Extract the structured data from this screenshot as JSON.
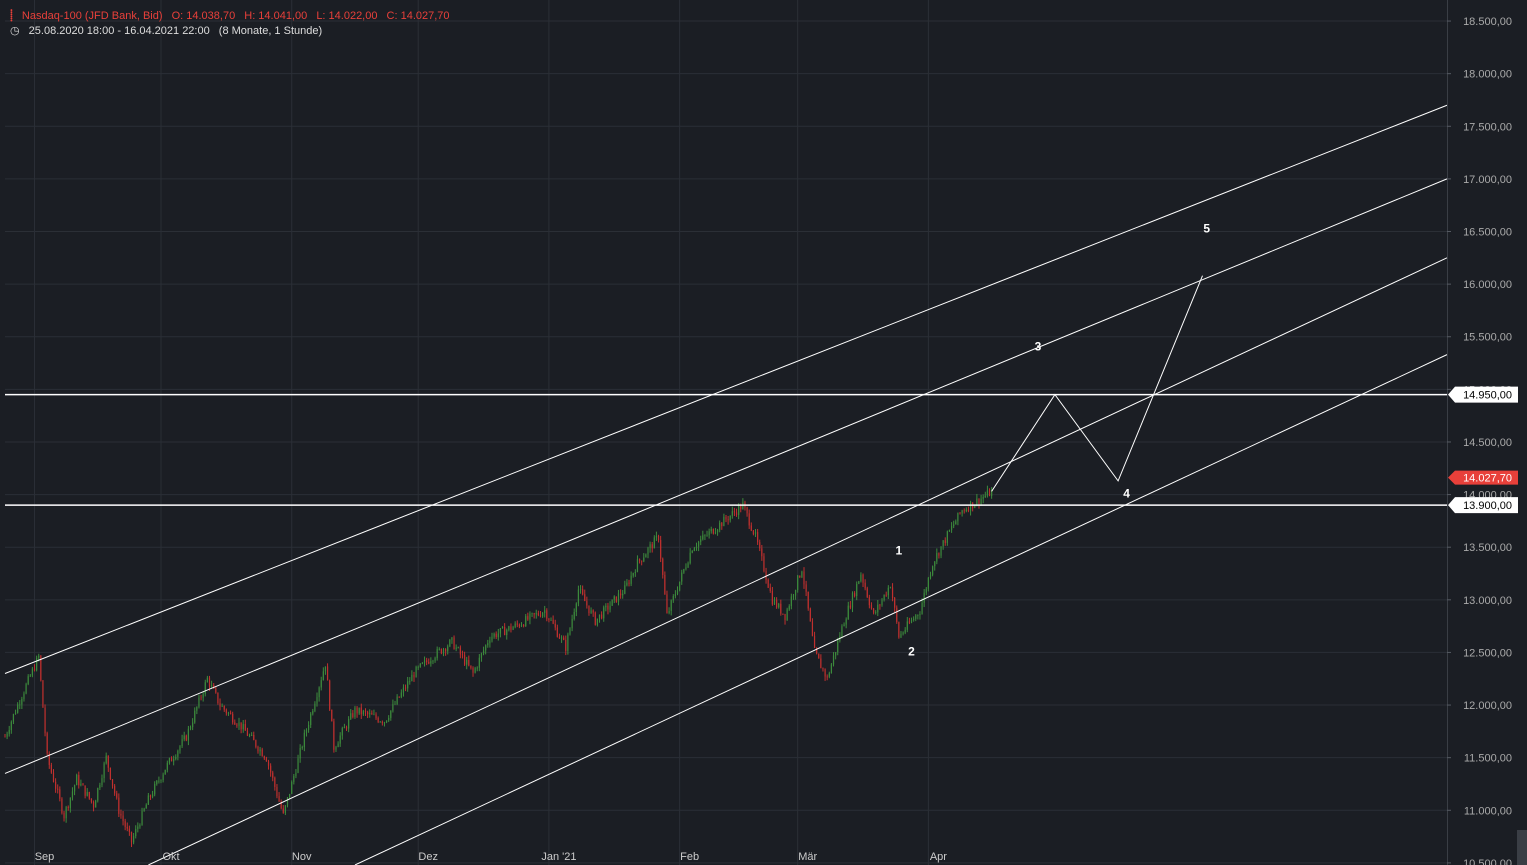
{
  "chart_data": {
    "type": "candlestick",
    "symbol": "Nasdaq-100 (JFD Bank, Bid)",
    "ohlc": {
      "open": "O: 14.038,70",
      "high": "H: 14.041,00",
      "low": "L: 14.022,00",
      "close": "C: 14.027,70"
    },
    "range_text": "25.08.2020 18:00 - 16.04.2021 22:00",
    "period_text": "(8 Monate, 1 Stunde)",
    "x_labels": [
      {
        "label": "Sep",
        "date": "2020-09-01"
      },
      {
        "label": "Okt",
        "date": "2020-10-01"
      },
      {
        "label": "Nov",
        "date": "2020-11-01"
      },
      {
        "label": "Dez",
        "date": "2020-12-01"
      },
      {
        "label": "Jan '21",
        "date": "2021-01-01"
      },
      {
        "label": "Feb",
        "date": "2021-02-01"
      },
      {
        "label": "Mär",
        "date": "2021-03-01"
      },
      {
        "label": "Apr",
        "date": "2021-04-01"
      }
    ],
    "y_ticks": [
      {
        "value": 10500,
        "label": "10.500,00"
      },
      {
        "value": 11000,
        "label": "11.000,00"
      },
      {
        "value": 11500,
        "label": "11.500,00"
      },
      {
        "value": 12000,
        "label": "12.000,00"
      },
      {
        "value": 12500,
        "label": "12.500,00"
      },
      {
        "value": 13000,
        "label": "13.000,00"
      },
      {
        "value": 13500,
        "label": "13.500,00"
      },
      {
        "value": 14000,
        "label": "14.000,00"
      },
      {
        "value": 14500,
        "label": "14.500,00"
      },
      {
        "value": 15000,
        "label": "15.000,00"
      },
      {
        "value": 15500,
        "label": "15.500,00"
      },
      {
        "value": 16000,
        "label": "16.000,00"
      },
      {
        "value": 16500,
        "label": "16.500,00"
      },
      {
        "value": 17000,
        "label": "17.000,00"
      },
      {
        "value": 17500,
        "label": "17.500,00"
      },
      {
        "value": 18000,
        "label": "18.000,00"
      },
      {
        "value": 18500,
        "label": "18.500,00"
      }
    ],
    "ylim": [
      10480,
      18700
    ],
    "xlim": [
      "2020-08-25",
      "2021-08-02"
    ],
    "price_path": [
      [
        "2020-08-25",
        11700
      ],
      [
        "2020-08-28",
        12000
      ],
      [
        "2020-09-02",
        12460
      ],
      [
        "2020-09-04",
        11500
      ],
      [
        "2020-09-08",
        10950
      ],
      [
        "2020-09-11",
        11300
      ],
      [
        "2020-09-15",
        11050
      ],
      [
        "2020-09-18",
        11500
      ],
      [
        "2020-09-21",
        11000
      ],
      [
        "2020-09-24",
        10700
      ],
      [
        "2020-09-28",
        11100
      ],
      [
        "2020-10-02",
        11400
      ],
      [
        "2020-10-07",
        11700
      ],
      [
        "2020-10-12",
        12250
      ],
      [
        "2020-10-15",
        12000
      ],
      [
        "2020-10-20",
        11800
      ],
      [
        "2020-10-26",
        11500
      ],
      [
        "2020-10-30",
        10950
      ],
      [
        "2020-11-04",
        11700
      ],
      [
        "2020-11-09",
        12400
      ],
      [
        "2020-11-11",
        11600
      ],
      [
        "2020-11-16",
        11950
      ],
      [
        "2020-11-23",
        11850
      ],
      [
        "2020-11-30",
        12300
      ],
      [
        "2020-12-04",
        12450
      ],
      [
        "2020-12-09",
        12600
      ],
      [
        "2020-12-14",
        12300
      ],
      [
        "2020-12-18",
        12650
      ],
      [
        "2020-12-24",
        12750
      ],
      [
        "2020-12-31",
        12900
      ],
      [
        "2021-01-05",
        12550
      ],
      [
        "2021-01-08",
        13100
      ],
      [
        "2021-01-12",
        12800
      ],
      [
        "2021-01-19",
        13100
      ],
      [
        "2021-01-22",
        13350
      ],
      [
        "2021-01-27",
        13600
      ],
      [
        "2021-01-29",
        12850
      ],
      [
        "2021-02-04",
        13500
      ],
      [
        "2021-02-10",
        13700
      ],
      [
        "2021-02-16",
        13900
      ],
      [
        "2021-02-19",
        13600
      ],
      [
        "2021-02-23",
        13000
      ],
      [
        "2021-02-26",
        12850
      ],
      [
        "2021-03-02",
        13300
      ],
      [
        "2021-03-05",
        12500
      ],
      [
        "2021-03-08",
        12250
      ],
      [
        "2021-03-12",
        12800
      ],
      [
        "2021-03-16",
        13250
      ],
      [
        "2021-03-19",
        12850
      ],
      [
        "2021-03-23",
        13150
      ],
      [
        "2021-03-25",
        12650
      ],
      [
        "2021-03-30",
        12900
      ],
      [
        "2021-04-02",
        13350
      ],
      [
        "2021-04-06",
        13650
      ],
      [
        "2021-04-09",
        13850
      ],
      [
        "2021-04-13",
        13950
      ],
      [
        "2021-04-16",
        14028
      ]
    ],
    "channel_lines": [
      {
        "start": [
          "2020-08-25",
          12300
        ],
        "end": [
          "2021-08-02",
          17700
        ]
      },
      {
        "start": [
          "2020-08-25",
          11350
        ],
        "end": [
          "2021-08-02",
          17000
        ]
      },
      {
        "start": [
          "2020-09-28",
          10480
        ],
        "end": [
          "2021-08-02",
          16250
        ]
      },
      {
        "start": [
          "2020-11-16",
          10480
        ],
        "end": [
          "2021-08-02",
          15330
        ]
      }
    ],
    "horizontal_levels": [
      {
        "value": 14950,
        "label": "14.950,00"
      },
      {
        "value": 13900,
        "label": "13.900,00"
      }
    ],
    "last_price": {
      "value": 14027.7,
      "label": "14.027,70"
    },
    "projection_path": [
      [
        "2021-04-16",
        14030
      ],
      [
        "2021-05-01",
        14950
      ],
      [
        "2021-05-16",
        14130
      ],
      [
        "2021-06-05",
        16080
      ]
    ],
    "wave_labels": [
      {
        "label": "1",
        "date": "2021-03-25",
        "value": 13430
      },
      {
        "label": "2",
        "date": "2021-03-28",
        "value": 12470
      },
      {
        "label": "3",
        "date": "2021-04-27",
        "value": 15370
      },
      {
        "label": "4",
        "date": "2021-05-18",
        "value": 13970
      },
      {
        "label": "5",
        "date": "2021-06-06",
        "value": 16490
      }
    ],
    "colors": {
      "background": "#1b1e24",
      "grid": "#2b2f36",
      "up": "#3c8a3c",
      "down": "#c0302e",
      "drawing": "#ffffff",
      "axis_text": "#aaaaaa",
      "header_red": "#e8403a",
      "last_price_bg": "#e8403a"
    },
    "grid": true
  }
}
